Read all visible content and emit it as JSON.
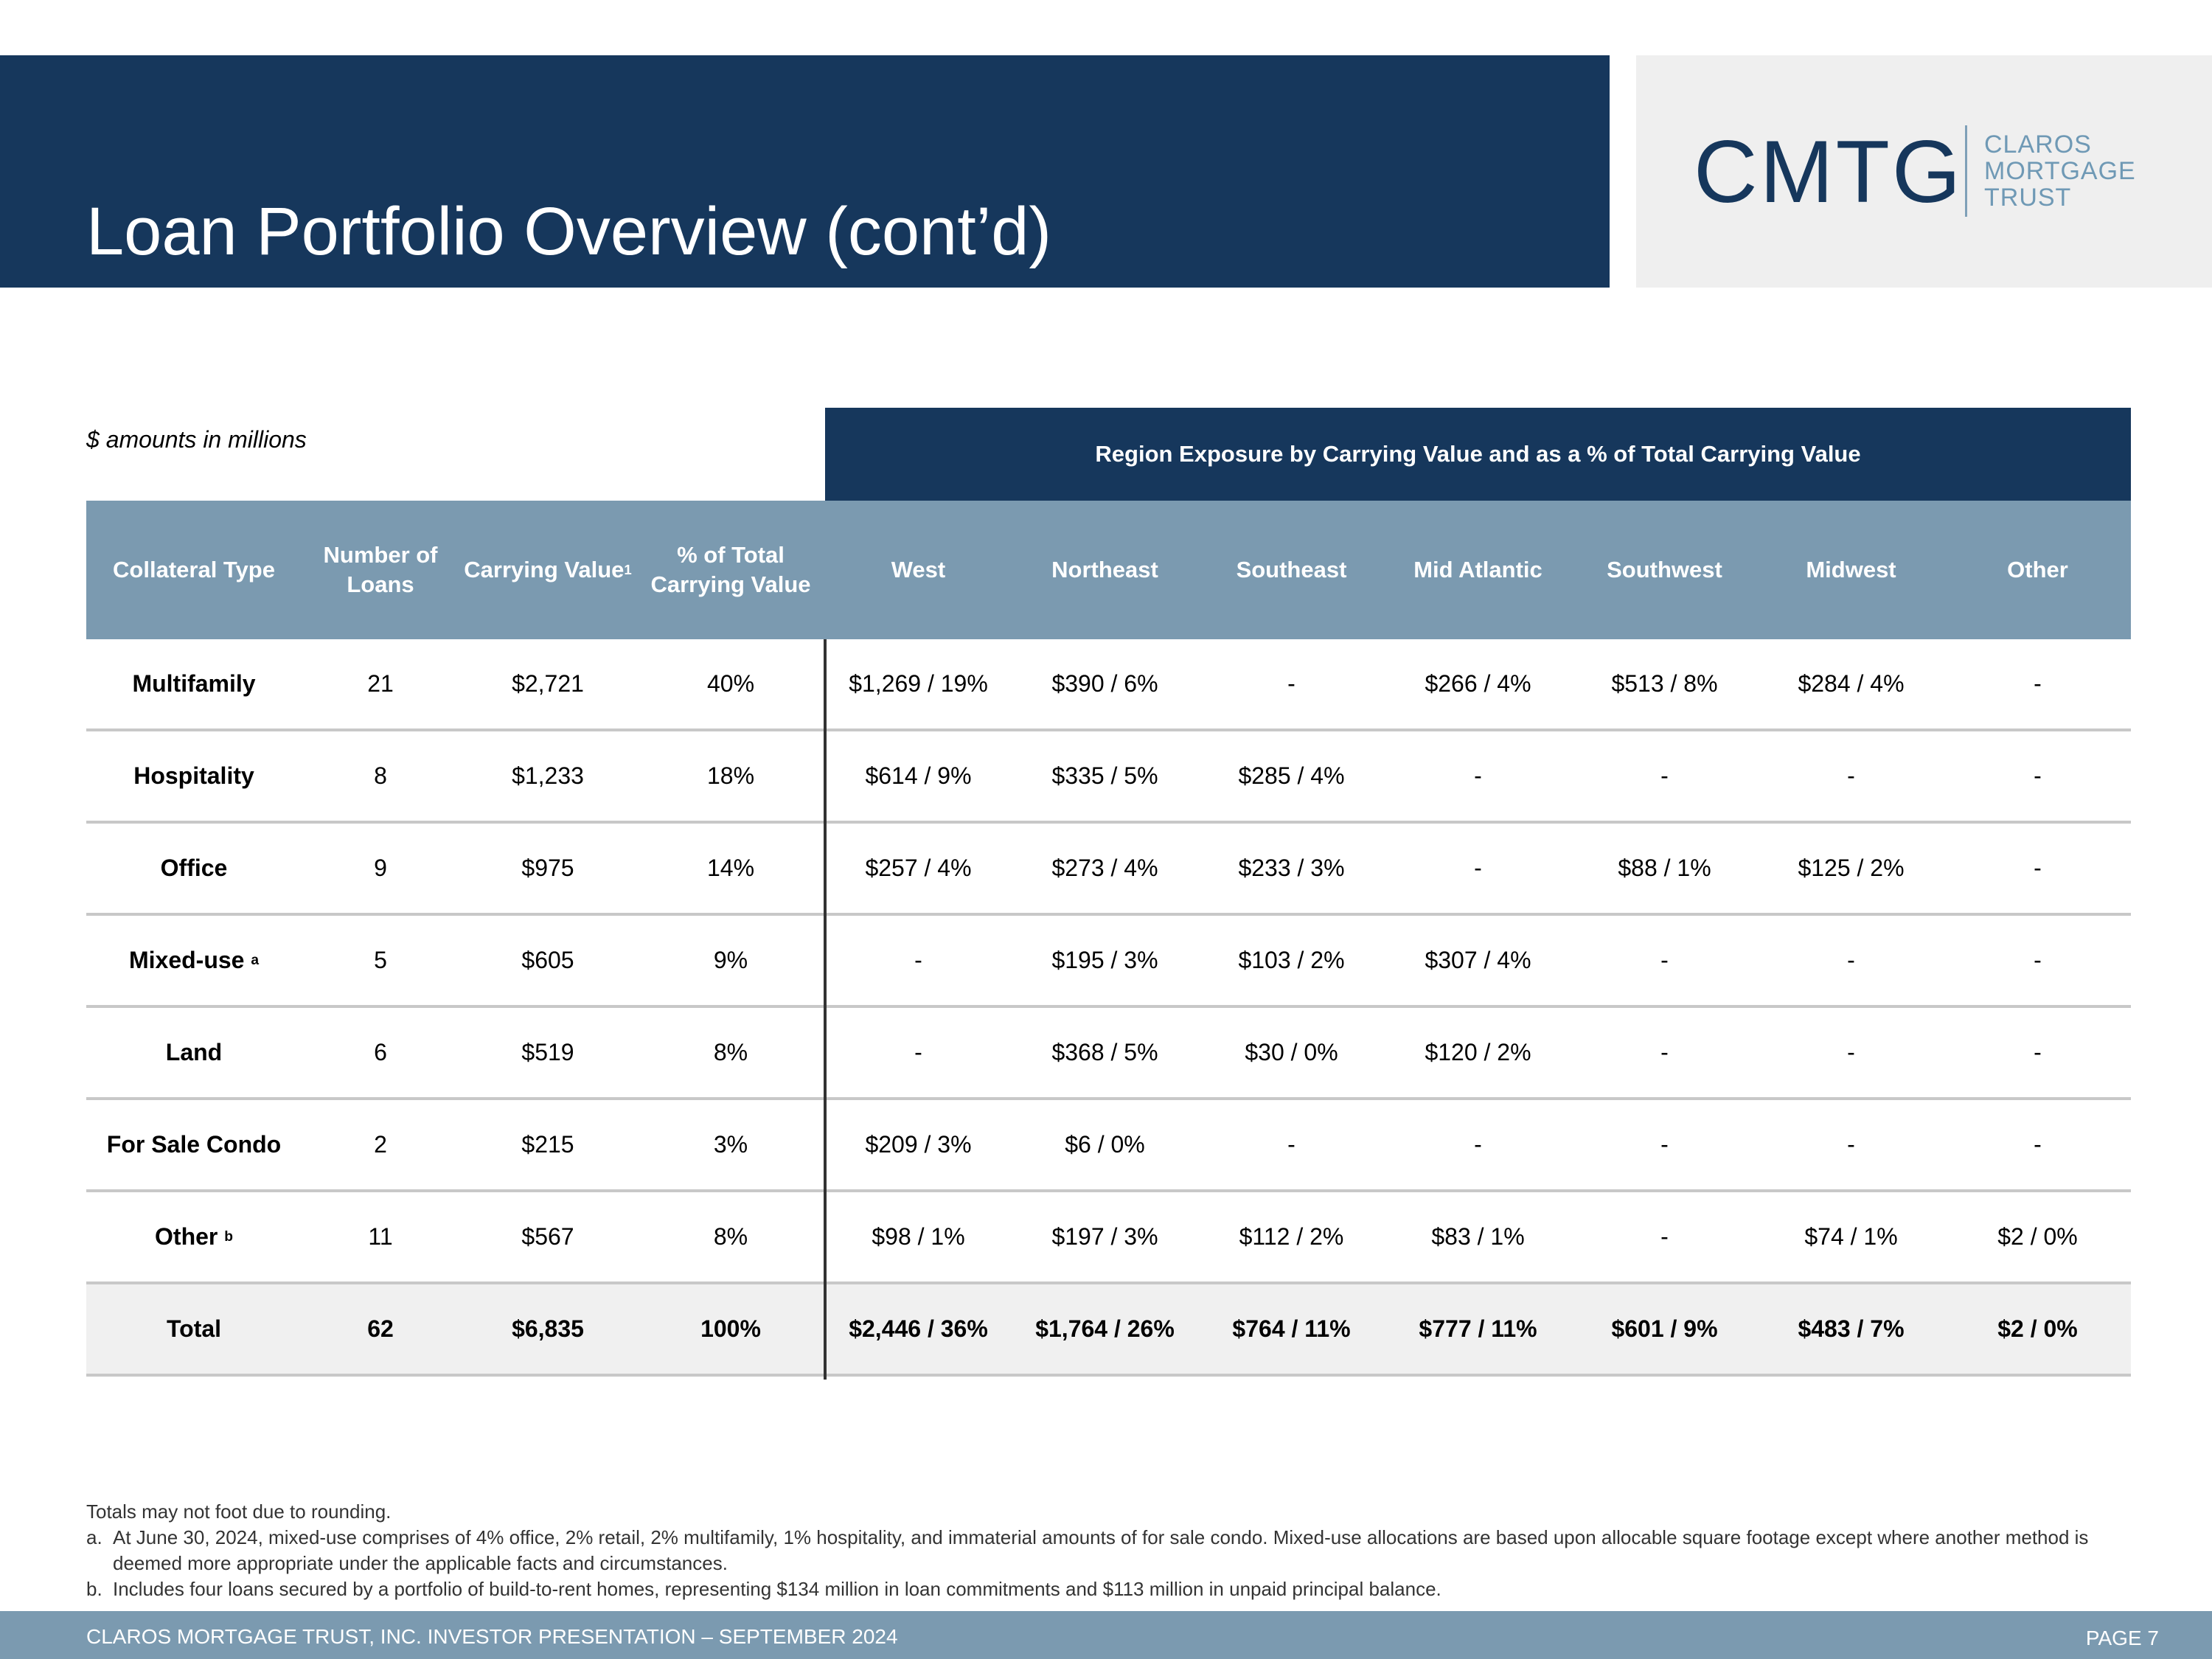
{
  "header": {
    "title": "Loan Portfolio Overview (cont’d)"
  },
  "logo": {
    "mark": "CMTG",
    "words": [
      "CLAROS",
      "MORTGAGE",
      "TRUST"
    ]
  },
  "table": {
    "units_note": "$ amounts in millions",
    "region_header": "Region Exposure by Carrying Value and as a % of Total Carrying Value",
    "columns": [
      {
        "label": "Collateral Type"
      },
      {
        "label": "Number of Loans"
      },
      {
        "label": "Carrying Value",
        "sup": "1"
      },
      {
        "label": "% of Total Carrying Value"
      },
      {
        "label": "West"
      },
      {
        "label": "Northeast"
      },
      {
        "label": "Southeast"
      },
      {
        "label": "Mid Atlantic"
      },
      {
        "label": "Southwest"
      },
      {
        "label": "Midwest"
      },
      {
        "label": "Other"
      }
    ],
    "rows": [
      {
        "type": "Multifamily",
        "sup": "",
        "cells": [
          "21",
          "$2,721",
          "40%",
          "$1,269 / 19%",
          "$390 / 6%",
          "-",
          "$266 / 4%",
          "$513 / 8%",
          "$284 / 4%",
          "-"
        ]
      },
      {
        "type": "Hospitality",
        "sup": "",
        "cells": [
          "8",
          "$1,233",
          "18%",
          "$614 / 9%",
          "$335 / 5%",
          "$285 / 4%",
          "-",
          "-",
          "-",
          "-"
        ]
      },
      {
        "type": "Office",
        "sup": "",
        "cells": [
          "9",
          "$975",
          "14%",
          "$257 / 4%",
          "$273 / 4%",
          "$233 / 3%",
          "-",
          "$88 / 1%",
          "$125 / 2%",
          "-"
        ]
      },
      {
        "type": "Mixed-use",
        "sup": "a",
        "cells": [
          "5",
          "$605",
          "9%",
          "-",
          "$195 / 3%",
          "$103 / 2%",
          "$307 / 4%",
          "-",
          "-",
          "-"
        ]
      },
      {
        "type": "Land",
        "sup": "",
        "cells": [
          "6",
          "$519",
          "8%",
          "-",
          "$368 / 5%",
          "$30 / 0%",
          "$120 / 2%",
          "-",
          "-",
          "-"
        ]
      },
      {
        "type": "For Sale Condo",
        "sup": "",
        "cells": [
          "2",
          "$215",
          "3%",
          "$209 / 3%",
          "$6 / 0%",
          "-",
          "-",
          "-",
          "-",
          "-"
        ]
      },
      {
        "type": "Other",
        "sup": "b",
        "cells": [
          "11",
          "$567",
          "8%",
          "$98 / 1%",
          "$197 / 3%",
          "$112 / 2%",
          "$83 / 1%",
          "-",
          "$74 / 1%",
          "$2 / 0%"
        ]
      }
    ],
    "total": {
      "type": "Total",
      "sup": "",
      "cells": [
        "62",
        "$6,835",
        "100%",
        "$2,446 /  36%",
        "$1,764 / 26%",
        "$764 / 11%",
        "$777 / 11%",
        "$601 / 9%",
        "$483 / 7%",
        "$2 / 0%"
      ]
    }
  },
  "footnotes": {
    "rounding": "Totals may not foot due to rounding.",
    "items": [
      {
        "marker": "a.",
        "text": "At June 30, 2024, mixed-use comprises of 4% office, 2% retail, 2% multifamily, 1% hospitality, and immaterial amounts of for sale condo. Mixed-use allocations are based upon allocable square footage except where another method is deemed more appropriate under the applicable facts and circumstances."
      },
      {
        "marker": "b.",
        "text": "Includes four loans secured by a portfolio of build-to-rent homes, representing $134 million in loan commitments and $113 million in unpaid principal balance."
      }
    ]
  },
  "footer": {
    "text": "CLAROS MORTGAGE TRUST, INC. INVESTOR PRESENTATION – SEPTEMBER 2024",
    "page": "PAGE 7"
  }
}
